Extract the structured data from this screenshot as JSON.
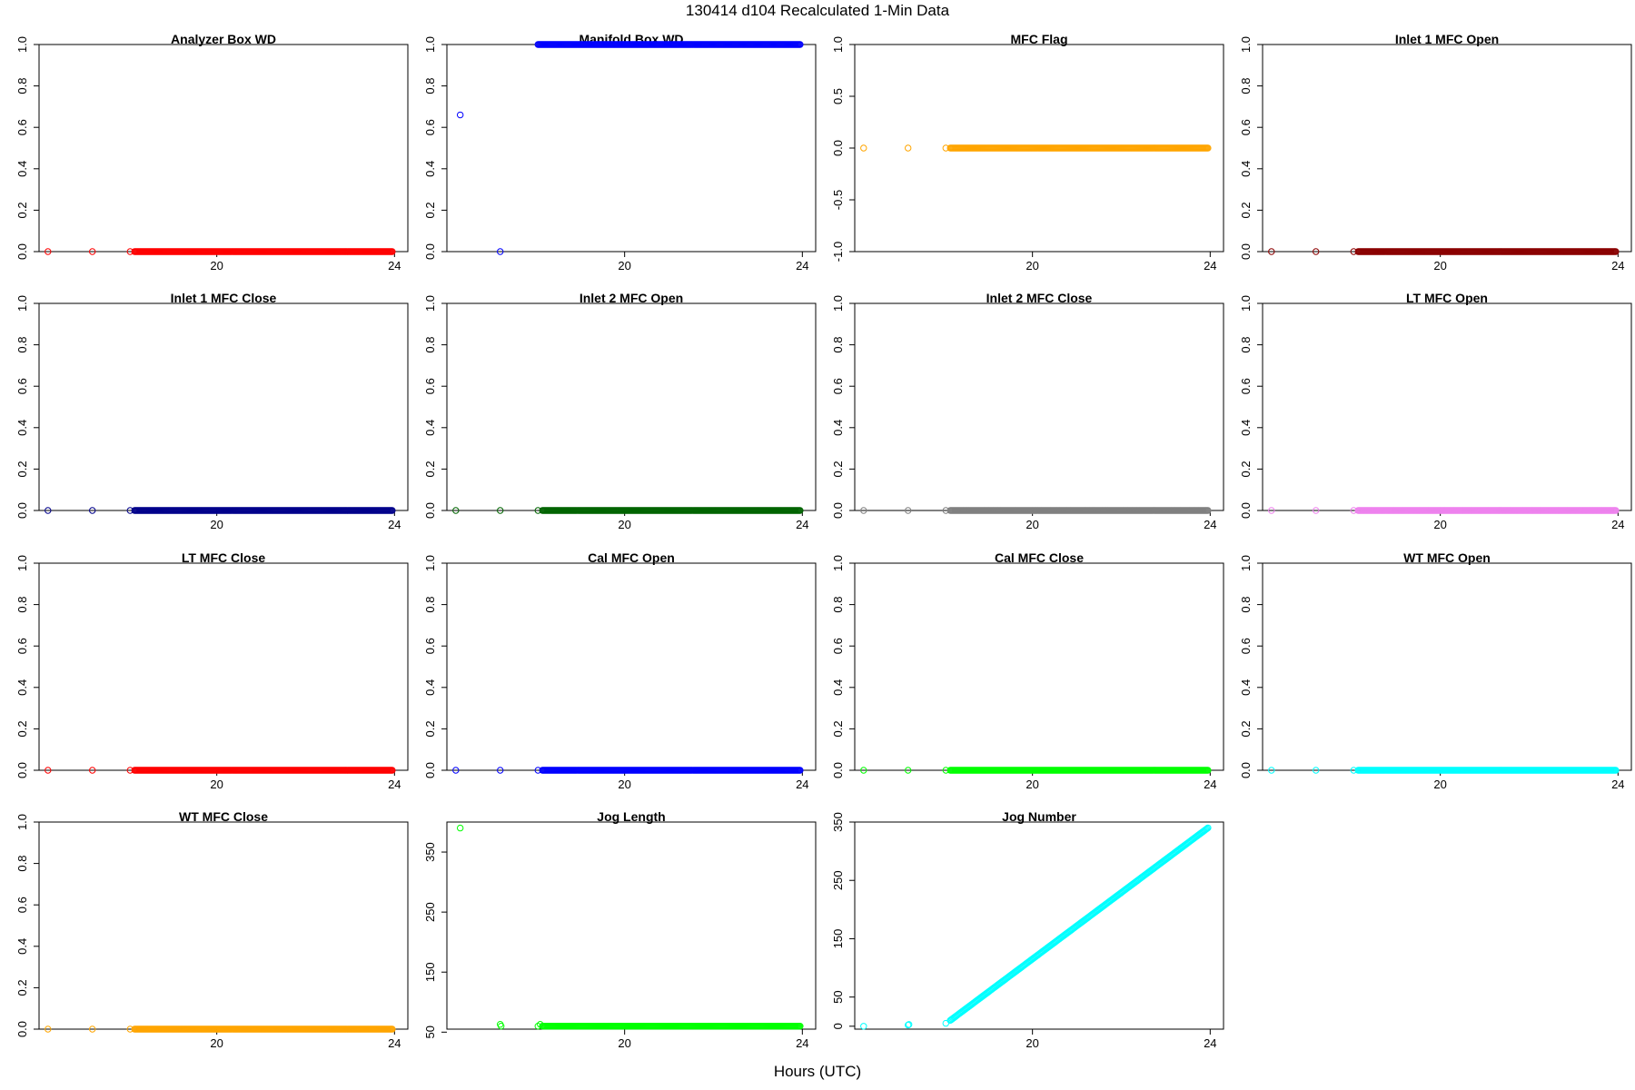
{
  "figure": {
    "title": "130414   d104   Recalculated 1-Min Data",
    "xlabel": "Hours (UTC)"
  },
  "chart_data": [
    {
      "type": "scatter",
      "title": "Analyzer Box WD",
      "xlim": [
        16,
        24.3
      ],
      "ylim": [
        0,
        1
      ],
      "yticks": [
        0.0,
        0.2,
        0.4,
        0.6,
        0.8,
        1.0
      ],
      "xticks": [
        20,
        24
      ],
      "color": "#ff0000",
      "marker": "open-circle",
      "x_start": 18.15,
      "x_end": 23.95,
      "y_const": 0,
      "extra_points": [
        [
          16.2,
          0
        ],
        [
          17.2,
          0
        ],
        [
          18.05,
          0
        ]
      ]
    },
    {
      "type": "scatter",
      "title": "Manifold Box WD",
      "xlim": [
        16,
        24.3
      ],
      "ylim": [
        0,
        1
      ],
      "yticks": [
        0.0,
        0.2,
        0.4,
        0.6,
        0.8,
        1.0
      ],
      "xticks": [
        20,
        24
      ],
      "color": "#0000ff",
      "marker": "open-circle",
      "x_start": 18.05,
      "x_end": 23.95,
      "y_const": 1,
      "extra_points": [
        [
          16.3,
          0.66
        ],
        [
          17.2,
          0
        ]
      ]
    },
    {
      "type": "scatter",
      "title": "MFC Flag",
      "xlim": [
        16,
        24.3
      ],
      "ylim": [
        -1,
        1
      ],
      "yticks": [
        -1.0,
        -0.5,
        0.0,
        0.5,
        1.0
      ],
      "xticks": [
        20,
        24
      ],
      "color": "#ffa500",
      "marker": "open-circle",
      "x_start": 18.15,
      "x_end": 23.95,
      "y_const": 0,
      "extra_points": [
        [
          16.2,
          0
        ],
        [
          17.2,
          0
        ],
        [
          18.05,
          0
        ]
      ]
    },
    {
      "type": "scatter",
      "title": "Inlet 1 MFC Open",
      "xlim": [
        16,
        24.3
      ],
      "ylim": [
        0,
        1
      ],
      "yticks": [
        0.0,
        0.2,
        0.4,
        0.6,
        0.8,
        1.0
      ],
      "xticks": [
        20,
        24
      ],
      "color": "#8b0000",
      "marker": "open-circle",
      "x_start": 18.15,
      "x_end": 23.95,
      "y_const": 0,
      "extra_points": [
        [
          16.2,
          0
        ],
        [
          17.2,
          0
        ],
        [
          18.05,
          0
        ]
      ]
    },
    {
      "type": "scatter",
      "title": "Inlet 1 MFC Close",
      "xlim": [
        16,
        24.3
      ],
      "ylim": [
        0,
        1
      ],
      "yticks": [
        0.0,
        0.2,
        0.4,
        0.6,
        0.8,
        1.0
      ],
      "xticks": [
        20,
        24
      ],
      "color": "#00008b",
      "marker": "open-circle",
      "x_start": 18.15,
      "x_end": 23.95,
      "y_const": 0,
      "extra_points": [
        [
          16.2,
          0
        ],
        [
          17.2,
          0
        ],
        [
          18.05,
          0
        ]
      ]
    },
    {
      "type": "scatter",
      "title": "Inlet 2 MFC Open",
      "xlim": [
        16,
        24.3
      ],
      "ylim": [
        0,
        1
      ],
      "yticks": [
        0.0,
        0.2,
        0.4,
        0.6,
        0.8,
        1.0
      ],
      "xticks": [
        20,
        24
      ],
      "color": "#006400",
      "marker": "open-circle",
      "x_start": 18.15,
      "x_end": 23.95,
      "y_const": 0,
      "extra_points": [
        [
          16.2,
          0
        ],
        [
          17.2,
          0
        ],
        [
          18.05,
          0
        ]
      ]
    },
    {
      "type": "scatter",
      "title": "Inlet 2 MFC Close",
      "xlim": [
        16,
        24.3
      ],
      "ylim": [
        0,
        1
      ],
      "yticks": [
        0.0,
        0.2,
        0.4,
        0.6,
        0.8,
        1.0
      ],
      "xticks": [
        20,
        24
      ],
      "color": "#808080",
      "marker": "open-circle",
      "x_start": 18.15,
      "x_end": 23.95,
      "y_const": 0,
      "extra_points": [
        [
          16.2,
          0
        ],
        [
          17.2,
          0
        ],
        [
          18.05,
          0
        ]
      ]
    },
    {
      "type": "scatter",
      "title": "LT MFC Open",
      "xlim": [
        16,
        24.3
      ],
      "ylim": [
        0,
        1
      ],
      "yticks": [
        0.0,
        0.2,
        0.4,
        0.6,
        0.8,
        1.0
      ],
      "xticks": [
        20,
        24
      ],
      "color": "#ee82ee",
      "marker": "open-circle",
      "x_start": 18.15,
      "x_end": 23.95,
      "y_const": 0,
      "extra_points": [
        [
          16.2,
          0
        ],
        [
          17.2,
          0
        ],
        [
          18.05,
          0
        ]
      ]
    },
    {
      "type": "scatter",
      "title": "LT MFC Close",
      "xlim": [
        16,
        24.3
      ],
      "ylim": [
        0,
        1
      ],
      "yticks": [
        0.0,
        0.2,
        0.4,
        0.6,
        0.8,
        1.0
      ],
      "xticks": [
        20,
        24
      ],
      "color": "#ff0000",
      "marker": "open-circle",
      "x_start": 18.15,
      "x_end": 23.95,
      "y_const": 0,
      "extra_points": [
        [
          16.2,
          0
        ],
        [
          17.2,
          0
        ],
        [
          18.05,
          0
        ]
      ]
    },
    {
      "type": "scatter",
      "title": "Cal MFC Open",
      "xlim": [
        16,
        24.3
      ],
      "ylim": [
        0,
        1
      ],
      "yticks": [
        0.0,
        0.2,
        0.4,
        0.6,
        0.8,
        1.0
      ],
      "xticks": [
        20,
        24
      ],
      "color": "#0000ff",
      "marker": "open-circle",
      "x_start": 18.15,
      "x_end": 23.95,
      "y_const": 0,
      "extra_points": [
        [
          16.2,
          0
        ],
        [
          17.2,
          0
        ],
        [
          18.05,
          0
        ]
      ]
    },
    {
      "type": "scatter",
      "title": "Cal MFC Close",
      "xlim": [
        16,
        24.3
      ],
      "ylim": [
        0,
        1
      ],
      "yticks": [
        0.0,
        0.2,
        0.4,
        0.6,
        0.8,
        1.0
      ],
      "xticks": [
        20,
        24
      ],
      "color": "#00ff00",
      "marker": "open-circle",
      "x_start": 18.15,
      "x_end": 23.95,
      "y_const": 0,
      "extra_points": [
        [
          16.2,
          0
        ],
        [
          17.2,
          0
        ],
        [
          18.05,
          0
        ]
      ]
    },
    {
      "type": "scatter",
      "title": "WT MFC Open",
      "xlim": [
        16,
        24.3
      ],
      "ylim": [
        0,
        1
      ],
      "yticks": [
        0.0,
        0.2,
        0.4,
        0.6,
        0.8,
        1.0
      ],
      "xticks": [
        20,
        24
      ],
      "color": "#00ffff",
      "marker": "open-circle",
      "x_start": 18.15,
      "x_end": 23.95,
      "y_const": 0,
      "extra_points": [
        [
          16.2,
          0
        ],
        [
          17.2,
          0
        ],
        [
          18.05,
          0
        ]
      ]
    },
    {
      "type": "scatter",
      "title": "WT MFC Close",
      "xlim": [
        16,
        24.3
      ],
      "ylim": [
        0,
        1
      ],
      "yticks": [
        0.0,
        0.2,
        0.4,
        0.6,
        0.8,
        1.0
      ],
      "xticks": [
        20,
        24
      ],
      "color": "#ffa500",
      "marker": "open-circle",
      "x_start": 18.15,
      "x_end": 23.95,
      "y_const": 0,
      "extra_points": [
        [
          16.2,
          0
        ],
        [
          17.2,
          0
        ],
        [
          18.05,
          0
        ]
      ]
    },
    {
      "type": "scatter",
      "title": "Jog Length",
      "xlim": [
        16,
        24.3
      ],
      "ylim": [
        55,
        400
      ],
      "yticks": [
        50,
        150,
        250,
        350
      ],
      "xticks": [
        20,
        24
      ],
      "color": "#00ff00",
      "marker": "open-circle",
      "x_start": 18.15,
      "x_end": 23.95,
      "y_const": 60,
      "extra_points": [
        [
          16.3,
          390
        ],
        [
          17.2,
          63
        ],
        [
          17.22,
          60
        ],
        [
          18.05,
          60
        ],
        [
          18.1,
          63
        ]
      ]
    },
    {
      "type": "scatter",
      "title": "Jog Number",
      "xlim": [
        16,
        24.3
      ],
      "ylim": [
        -5,
        350
      ],
      "yticks": [
        0,
        50,
        150,
        250,
        350
      ],
      "xticks": [
        20,
        24
      ],
      "color": "#00ffff",
      "marker": "open-circle",
      "x_start": 18.15,
      "x_end": 23.95,
      "y_from": 10,
      "y_to": 340,
      "extra_points": [
        [
          16.2,
          0
        ],
        [
          17.2,
          2
        ],
        [
          17.22,
          3
        ],
        [
          18.05,
          5
        ]
      ]
    }
  ]
}
